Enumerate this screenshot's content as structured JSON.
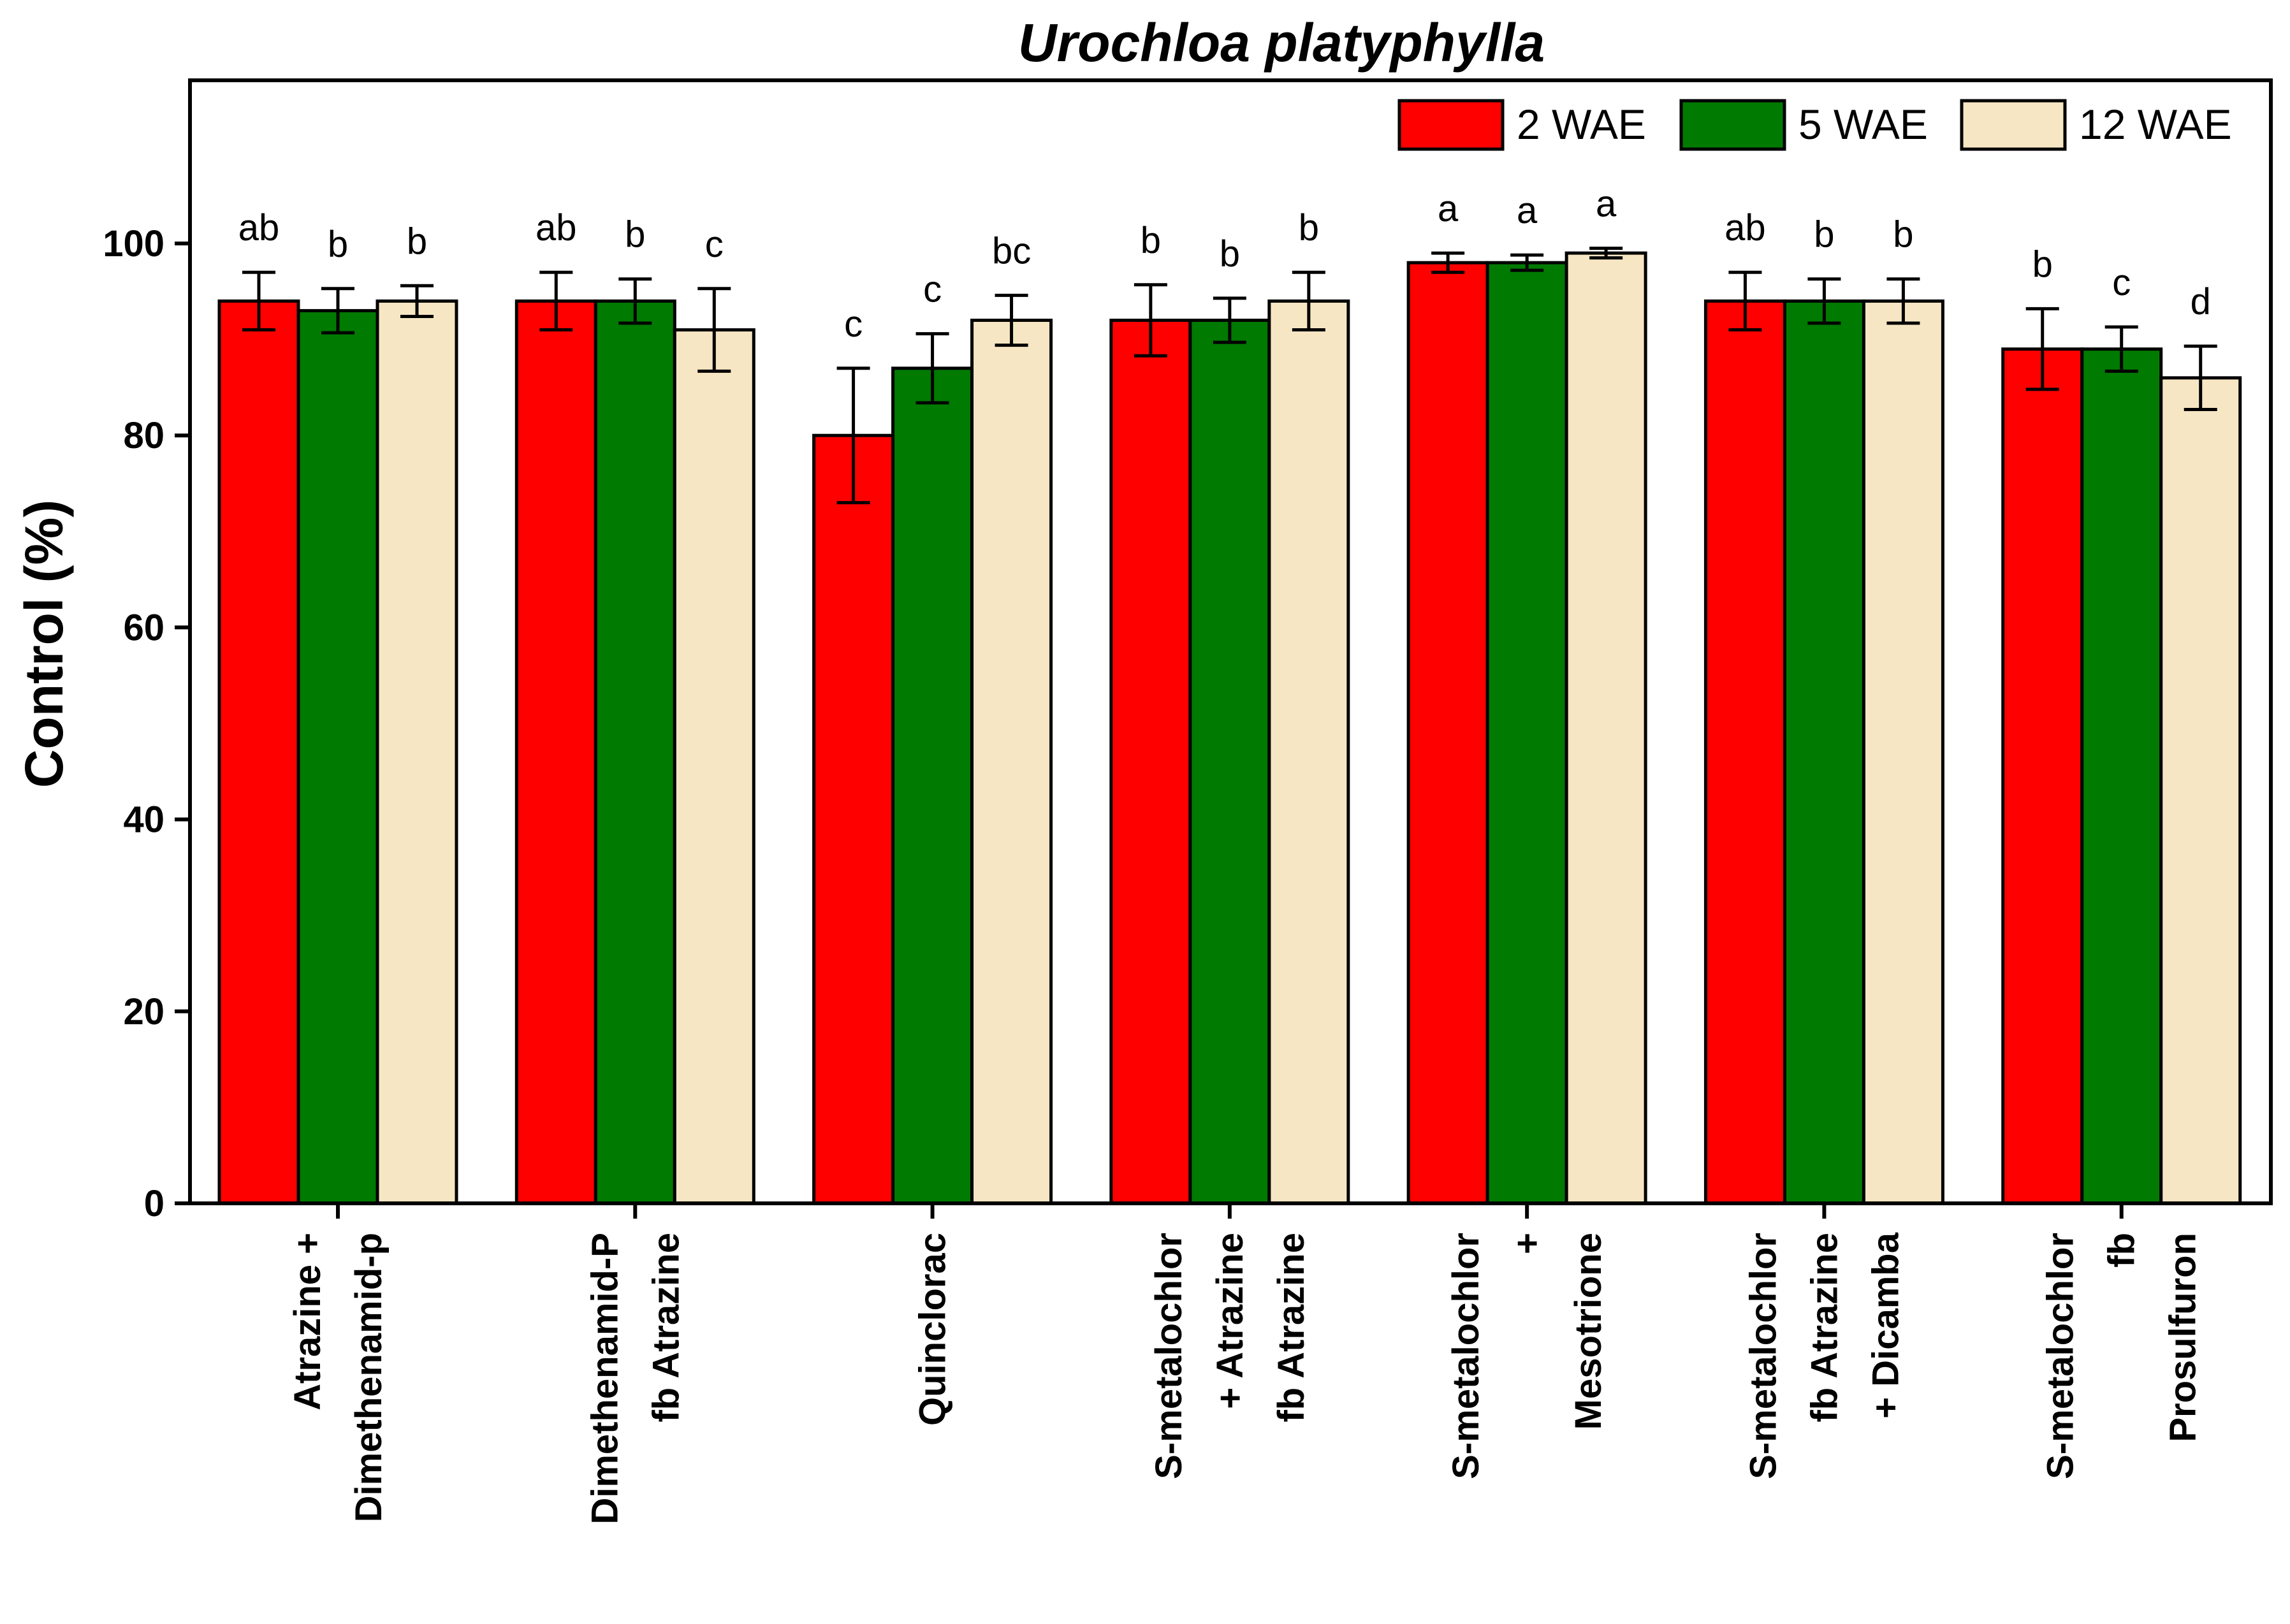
{
  "chart_data": {
    "type": "bar",
    "title": "Urochloa platyphylla",
    "xlabel": "",
    "ylabel": "Control (%)",
    "ylim": [
      0,
      117
    ],
    "yticks": [
      0,
      20,
      40,
      60,
      80,
      100
    ],
    "grid": false,
    "legend_position": "top-right",
    "categories": [
      [
        "Atrazine +",
        "Dimethenamid-p"
      ],
      [
        "Dimethenamid-P",
        "fb Atrazine"
      ],
      [
        "Quinclorac"
      ],
      [
        "S-metalochlor",
        "+ Atrazine",
        "fb Atrazine"
      ],
      [
        "S-metalochlor",
        "+",
        "Mesotrione"
      ],
      [
        "S-metalochlor",
        "fb Atrazine",
        "+ Dicamba"
      ],
      [
        "S-metalochlor",
        "fb",
        "Prosulfuron"
      ]
    ],
    "series": [
      {
        "name": "2 WAE",
        "color": "#ff0000",
        "values": [
          94,
          94,
          80,
          92,
          98,
          94,
          89
        ],
        "errors": [
          3,
          3,
          7,
          3.7,
          1,
          3,
          4.2
        ],
        "letters": [
          "ab",
          "ab",
          "c",
          "b",
          "a",
          "ab",
          "b"
        ]
      },
      {
        "name": "5 WAE",
        "color": "#007a00",
        "values": [
          93,
          94,
          87,
          92,
          98,
          94,
          89
        ],
        "errors": [
          2.3,
          2.3,
          3.6,
          2.3,
          0.8,
          2.3,
          2.3
        ],
        "letters": [
          "b",
          "b",
          "c",
          "b",
          "a",
          "b",
          "c"
        ]
      },
      {
        "name": "12 WAE",
        "color": "#f7e6c3",
        "values": [
          94,
          91,
          92,
          94,
          99,
          94,
          86
        ],
        "errors": [
          1.6,
          4.3,
          2.6,
          3,
          0.5,
          2.3,
          3.3
        ],
        "letters": [
          "b",
          "c",
          "bc",
          "b",
          "a",
          "b",
          "d"
        ]
      }
    ]
  }
}
